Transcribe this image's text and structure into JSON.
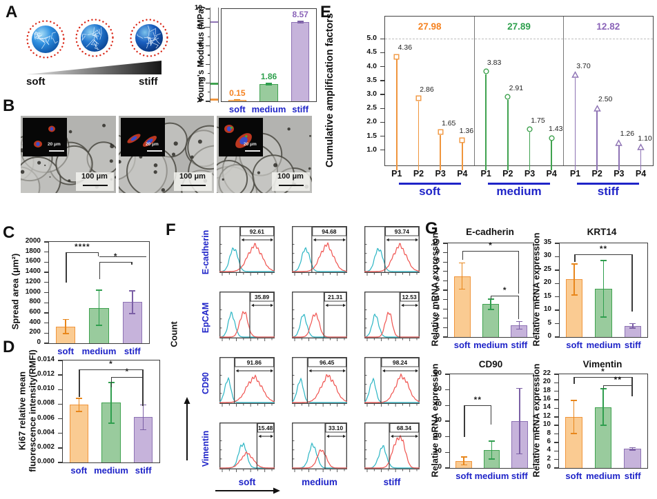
{
  "figure": {
    "panel_letters": [
      "A",
      "B",
      "C",
      "D",
      "E",
      "F",
      "G"
    ]
  },
  "panel_a": {
    "soft_label": "soft",
    "stiff_label": "stiff"
  },
  "panel_b": {
    "scale_label": "100 μm",
    "inset_scale_label": "20 μm"
  },
  "colors": {
    "categories": [
      "soft",
      "medium",
      "stiff"
    ],
    "fill": [
      "#FACB92",
      "#99CB9D",
      "#C6B3DB"
    ],
    "stroke": [
      "#F0953C",
      "#3FA24F",
      "#8D72B4"
    ],
    "error": [
      "#E8861B",
      "#2F9E4E",
      "#7B5FA5"
    ],
    "text": [
      "#F58220",
      "#2EA04D",
      "#8A63B8"
    ],
    "blue_label": "#1F24C8",
    "cyan": "#2BB5C4",
    "red": "#F0534F",
    "bracket": "#3a3a3a"
  },
  "chart_data": [
    {
      "id": "youngs",
      "type": "bar",
      "ylabel": "Young's Modulus (MPa)",
      "categories": [
        "soft",
        "medium",
        "stiff"
      ],
      "values": [
        0.15,
        1.86,
        8.57
      ],
      "errors": [
        0.03,
        0.06,
        0.1
      ],
      "value_labels": [
        "0.15",
        "1.86",
        "8.57"
      ],
      "ylim": [
        0,
        10
      ],
      "ystep": 2,
      "yminor": 1,
      "decimals": 0,
      "axis_strip": true,
      "tlw": 30,
      "brackets": []
    },
    {
      "id": "spread",
      "type": "bar",
      "ylabel": "Spread area (μm²)",
      "categories": [
        "soft",
        "medium",
        "stiff"
      ],
      "values": [
        330,
        700,
        810
      ],
      "errors": [
        140,
        350,
        225
      ],
      "ylim": [
        0,
        2000
      ],
      "ystep": 200,
      "decimals": 0,
      "tlw": 34,
      "brackets": [
        {
          "a": 0,
          "b": 1,
          "y": 1800,
          "da": 600,
          "db": 80,
          "label": "****"
        },
        {
          "a": 1,
          "b": 2,
          "y": 1710,
          "da": 15,
          "db": 15,
          "label": "",
          "ext": 0.42
        },
        {
          "a": 1,
          "b": 2,
          "y": 1600,
          "da": 330,
          "db": 55,
          "label": "*"
        }
      ]
    },
    {
      "id": "ki67",
      "type": "bar",
      "ylabel": "Ki67 relative mean",
      "ylabel2": "fluorescence intensity(RMFI)",
      "categories": [
        "soft",
        "medium",
        "stiff"
      ],
      "values": [
        0.0079,
        0.0082,
        0.0062
      ],
      "errors": [
        0.0009,
        0.0028,
        0.0017
      ],
      "ylim": [
        0,
        0.014
      ],
      "ystep": 0.002,
      "decimals": 3,
      "tlw": 36,
      "brackets": [
        {
          "a": 0,
          "b": 2,
          "y": 0.0128,
          "da": 0.0038,
          "db": 0.0033,
          "label": "*"
        },
        {
          "a": 1,
          "b": 2,
          "y": 0.0117,
          "da": 0.0014,
          "db": 0.0039,
          "label": "*"
        }
      ]
    },
    {
      "id": "amplification",
      "type": "lollipop",
      "ylabel": "Cumulative amplification factors",
      "ylim": [
        0.45,
        5.8
      ],
      "tick_from": 1.0,
      "tick_to": 5.0,
      "ystep": 0.5,
      "decimals": 1,
      "dashed_y": 5.0,
      "tlw": 28,
      "x_labels": [
        "P1",
        "P2",
        "P3",
        "P4"
      ],
      "groups": [
        {
          "name": "soft",
          "total": "27.98",
          "marker": "square",
          "values": [
            4.36,
            2.86,
            1.65,
            1.36
          ]
        },
        {
          "name": "medium",
          "total": "27.89",
          "marker": "circle",
          "values": [
            3.83,
            2.91,
            1.75,
            1.43
          ]
        },
        {
          "name": "stiff",
          "total": "12.82",
          "marker": "triangle",
          "values": [
            3.7,
            2.5,
            1.26,
            1.1
          ]
        }
      ]
    },
    {
      "id": "ecad_mrna",
      "type": "bar",
      "title": "E-cadherin",
      "ylabel": "Relative mRNA expression",
      "categories": [
        "soft",
        "medium",
        "stiff"
      ],
      "values": [
        6.5,
        3.5,
        1.25
      ],
      "errors": [
        1.4,
        0.55,
        0.4
      ],
      "ylim": [
        0,
        10
      ],
      "ystep": 1,
      "decimals": 0,
      "tlw": 24,
      "brackets": [
        {
          "a": 0,
          "b": 2,
          "y": 9.2,
          "da": 1.0,
          "db": 4.6,
          "label": "*"
        },
        {
          "a": 1,
          "b": 2,
          "y": 4.4,
          "da": 0.35,
          "db": 2.5,
          "label": "*"
        }
      ]
    },
    {
      "id": "krt14_mrna",
      "type": "bar",
      "title": "KRT14",
      "ylabel": "Relative mRNA expression",
      "categories": [
        "soft",
        "medium",
        "stiff"
      ],
      "values": [
        21.5,
        18,
        4.2
      ],
      "errors": [
        5.8,
        10.6,
        0.8
      ],
      "ylim": [
        0,
        35
      ],
      "ystep": 5,
      "decimals": 0,
      "tlw": 24,
      "brackets": [
        {
          "a": 0,
          "b": 2,
          "y": 31,
          "da": 3,
          "db": 21.5,
          "label": "**"
        }
      ]
    },
    {
      "id": "cd90_mrna",
      "type": "bar",
      "title": "CD90",
      "ylabel": "Relative mRNA expression",
      "categories": [
        "soft",
        "medium",
        "stiff"
      ],
      "values": [
        4.5,
        11.5,
        30
      ],
      "errors": [
        2.5,
        5.7,
        21
      ],
      "ylim": [
        0,
        60
      ],
      "ystep": 10,
      "decimals": 0,
      "tlw": 24,
      "brackets": [
        {
          "a": 0,
          "b": 1,
          "y": 40,
          "da": 20,
          "db": 12,
          "label": "**"
        }
      ]
    },
    {
      "id": "vim_mrna",
      "type": "bar",
      "title": "Vimentin",
      "ylabel": "Relative mRNA expression",
      "categories": [
        "soft",
        "medium",
        "stiff"
      ],
      "values": [
        12,
        14.3,
        4.5
      ],
      "errors": [
        3.9,
        4.3,
        0.25
      ],
      "ylim": [
        0,
        22
      ],
      "ystep": 2,
      "decimals": 0,
      "tlw": 24,
      "brackets": [
        {
          "a": 0,
          "b": 2,
          "y": 21.3,
          "da": 1.6,
          "db": 4.4,
          "label": "*"
        },
        {
          "a": 1,
          "b": 2,
          "y": 19.4,
          "da": 0.8,
          "db": 2.6,
          "label": "**"
        }
      ]
    },
    {
      "id": "flow",
      "type": "flow_histograms",
      "ylabel": "Count",
      "columns": [
        "soft",
        "medium",
        "stiff"
      ],
      "rows": [
        {
          "marker": "E-cadherin",
          "percentages": [
            "92.61",
            "94.68",
            "93.74"
          ],
          "cells": [
            {
              "gate": 0.37,
              "cyan": [
                26,
                0.82,
                7
              ],
              "red": [
                64,
                0.88,
                13
              ]
            },
            {
              "gate": 0.36,
              "cyan": [
                25,
                0.8,
                7
              ],
              "red": [
                63,
                0.9,
                12
              ]
            },
            {
              "gate": 0.37,
              "cyan": [
                26,
                0.8,
                7
              ],
              "red": [
                64,
                0.88,
                12
              ]
            }
          ]
        },
        {
          "marker": "EpCAM",
          "percentages": [
            "35.89",
            "21.31",
            "12.53"
          ],
          "cells": [
            {
              "gate": 0.55,
              "cyan": [
                22,
                0.8,
                6
              ],
              "red": [
                44,
                0.88,
                7
              ]
            },
            {
              "gate": 0.58,
              "cyan": [
                21,
                0.75,
                6
              ],
              "red": [
                42,
                0.82,
                7
              ]
            },
            {
              "gate": 0.64,
              "cyan": [
                20,
                0.74,
                6
              ],
              "red": [
                44,
                0.86,
                6
              ]
            }
          ]
        },
        {
          "marker": "CD90",
          "percentages": [
            "91.86",
            "96.45",
            "98.24"
          ],
          "cells": [
            {
              "gate": 0.27,
              "cyan": [
                15,
                0.8,
                5.5
              ],
              "red": [
                63,
                0.85,
                14
              ]
            },
            {
              "gate": 0.28,
              "cyan": [
                15,
                0.78,
                5.5
              ],
              "red": [
                66,
                0.9,
                13
              ]
            },
            {
              "gate": 0.3,
              "cyan": [
                15,
                0.78,
                5.5
              ],
              "red": [
                68,
                0.9,
                12
              ]
            }
          ]
        },
        {
          "marker": "Vimentin",
          "percentages": [
            "15.48",
            "33.10",
            "68.34"
          ],
          "cells": [
            {
              "gate": 0.68,
              "cyan": [
                42,
                0.85,
                7
              ],
              "red": [
                50,
                0.5,
                11
              ]
            },
            {
              "gate": 0.6,
              "cyan": [
                38,
                0.8,
                7
              ],
              "red": [
                54,
                0.62,
                8
              ]
            },
            {
              "gate": 0.45,
              "cyan": [
                33,
                0.72,
                7
              ],
              "red": [
                57,
                0.72,
                8
              ],
              "red2": [
                68,
                0.8,
                7
              ]
            }
          ]
        }
      ]
    }
  ]
}
